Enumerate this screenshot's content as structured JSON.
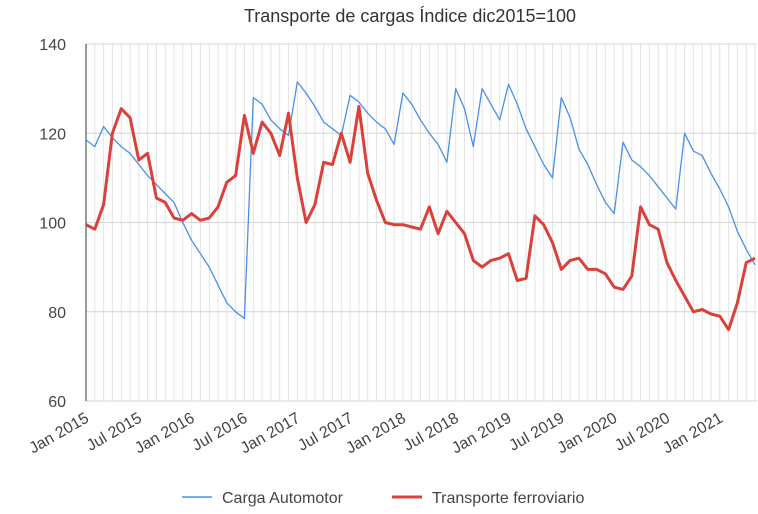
{
  "chart_data": {
    "type": "line",
    "title": "Transporte de cargas Índice dic2015=100",
    "categories": [
      "Jan 2015",
      null,
      null,
      null,
      null,
      null,
      "Jul 2015",
      null,
      null,
      null,
      null,
      null,
      "Jan 2016",
      null,
      null,
      null,
      null,
      null,
      "Jul 2016",
      null,
      null,
      null,
      null,
      null,
      "Jan 2017",
      null,
      null,
      null,
      null,
      null,
      "Jul 2017",
      null,
      null,
      null,
      null,
      null,
      "Jan 2018",
      null,
      null,
      null,
      null,
      null,
      "Jul 2018",
      null,
      null,
      null,
      null,
      null,
      "Jan 2019",
      null,
      null,
      null,
      null,
      null,
      "Jul 2019",
      null,
      null,
      null,
      null,
      null,
      "Jan 2020",
      null,
      null,
      null,
      null,
      null,
      "Jul 2020",
      null,
      null,
      null,
      null,
      null,
      "Jan 2021",
      null,
      null,
      null,
      null
    ],
    "series": [
      {
        "name": "Carga Automotor",
        "color": "#4a8fe8",
        "values": [
          118.5,
          117,
          121.5,
          119,
          117,
          115.5,
          113,
          110.5,
          108.5,
          106.5,
          104.5,
          100,
          96,
          93,
          90,
          86,
          82,
          80,
          78.5,
          128,
          126.5,
          123,
          121,
          119.5,
          131.5,
          129,
          126,
          122.5,
          121,
          119.5,
          128.5,
          127,
          124.5,
          122.5,
          121,
          117.5,
          129,
          126.5,
          123,
          120,
          117.5,
          113.5,
          130,
          125.5,
          117,
          130,
          126.5,
          123,
          131,
          126.5,
          121,
          117,
          113,
          110,
          128,
          123.5,
          116.5,
          113,
          108.5,
          104.5,
          102,
          118,
          114,
          112.5,
          110.5,
          108,
          105.5,
          103,
          120,
          116,
          115,
          111,
          107.5,
          103.5,
          98,
          94,
          90.5
        ]
      },
      {
        "name": "Transporte ferroviario",
        "color": "#d9413a",
        "values": [
          99.5,
          98.5,
          104,
          120,
          125.5,
          123.5,
          114,
          115.5,
          105.5,
          104.5,
          101,
          100.5,
          102,
          100.5,
          101,
          103.5,
          109,
          110.5,
          124,
          115.5,
          122.5,
          120,
          115,
          124.5,
          110,
          100,
          104,
          113.5,
          113,
          120,
          113.5,
          126,
          111,
          105,
          100,
          99.5,
          99.5,
          99,
          98.5,
          103.5,
          97.5,
          102.5,
          100,
          97.5,
          91.5,
          90,
          91.5,
          92,
          93,
          87,
          87.5,
          101.5,
          99.5,
          95.5,
          89.5,
          91.5,
          92,
          89.5,
          89.5,
          88.5,
          85.5,
          85,
          88,
          103.5,
          99.5,
          98.5,
          91,
          87,
          83.5,
          80,
          80.5,
          79.5,
          79,
          76,
          82,
          91,
          92
        ]
      }
    ],
    "ylim": [
      60,
      140
    ],
    "yticks": [
      60,
      80,
      100,
      120,
      140
    ],
    "grid": true,
    "legend": "bottom"
  }
}
